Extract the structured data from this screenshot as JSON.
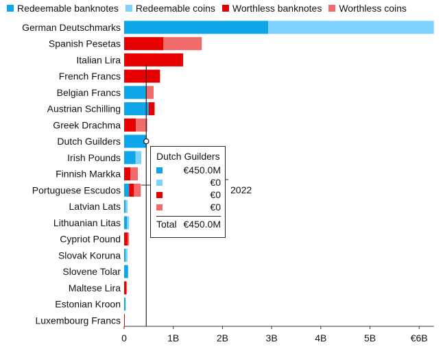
{
  "colors": {
    "redeemable_banknotes": "#0ea5e9",
    "redeemable_coins": "#7dd3fc",
    "worthless_banknotes": "#e60000",
    "worthless_coins": "#f26b6b"
  },
  "legend": [
    {
      "label": "Redeemable banknotes",
      "color": "#0ea5e9"
    },
    {
      "label": "Redeemable coins",
      "color": "#7dd3fc"
    },
    {
      "label": "Worthless banknotes",
      "color": "#e60000"
    },
    {
      "label": "Worthless coins",
      "color": "#f26b6b"
    }
  ],
  "chart_data": {
    "type": "bar",
    "orientation": "horizontal",
    "stacked": true,
    "categories": [
      "German Deutschmarks",
      "Spanish Pesetas",
      "Italian Lira",
      "French Francs",
      "Belgian Francs",
      "Austrian Schilling",
      "Greek Drachma",
      "Dutch Guilders",
      "Irish Pounds",
      "Finnish Markka",
      "Portuguese Escudos",
      "Latvian Lats",
      "Lithuanian Litas",
      "Cypriot Pound",
      "Slovak Koruna",
      "Slovene Tolar",
      "Maltese Lira",
      "Estonian Kroon",
      "Luxembourg Francs"
    ],
    "series": [
      {
        "name": "Redeemable banknotes",
        "values": [
          2.93,
          0,
          0,
          0,
          0.44,
          0.5,
          0,
          0.45,
          0.23,
          0,
          0.1,
          0.03,
          0.06,
          0,
          0.03,
          0.08,
          0,
          0.03,
          0
        ]
      },
      {
        "name": "Redeemable coins",
        "values": [
          3.37,
          0,
          0,
          0,
          0,
          0,
          0,
          0,
          0.12,
          0,
          0,
          0.04,
          0.04,
          0,
          0.04,
          0,
          0,
          0,
          0
        ]
      },
      {
        "name": "Worthless banknotes",
        "values": [
          0,
          0.8,
          1.2,
          0.73,
          0,
          0.12,
          0.24,
          0,
          0,
          0.13,
          0.1,
          0,
          0,
          0.07,
          0,
          0,
          0.05,
          0,
          0.005
        ]
      },
      {
        "name": "Worthless coins",
        "values": [
          0,
          0.78,
          0,
          0,
          0.16,
          0,
          0.23,
          0,
          0,
          0.15,
          0.14,
          0,
          0,
          0.03,
          0,
          0,
          0,
          0,
          0
        ]
      }
    ],
    "xticks": [
      "0",
      "1B",
      "2B",
      "3B",
      "4B",
      "5B",
      "€6B"
    ],
    "xlim": [
      0,
      6.3
    ],
    "reference_line": {
      "x": 0.45,
      "label": "2022"
    },
    "highlight_category": "Dutch Guilders"
  },
  "tooltip": {
    "title": "Dutch Guilders",
    "rows": [
      {
        "value": "€450.0M",
        "color": "#0ea5e9"
      },
      {
        "value": "€0",
        "color": "#7dd3fc"
      },
      {
        "value": "€0",
        "color": "#e60000"
      },
      {
        "value": "€0",
        "color": "#f26b6b"
      }
    ],
    "total_label": "Total",
    "total_value": "€450.0M"
  }
}
